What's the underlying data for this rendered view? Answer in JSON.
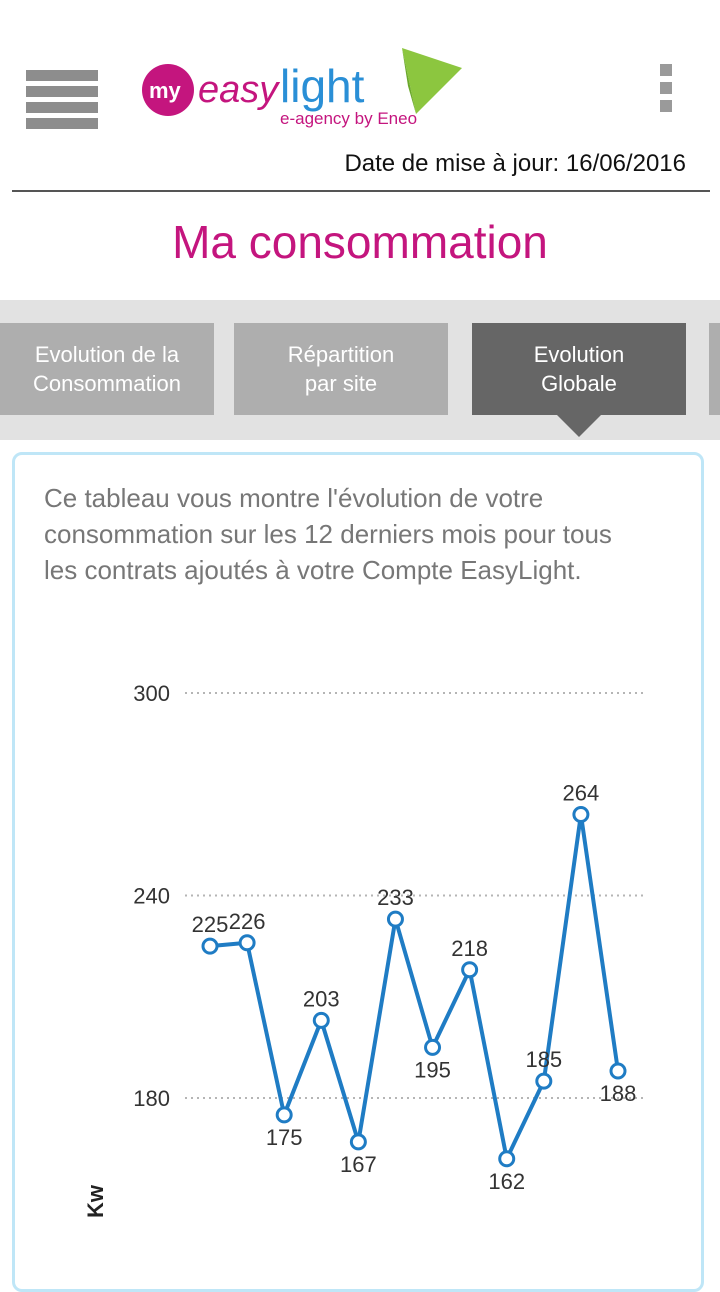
{
  "header": {
    "menu_icon": "hamburger-icon",
    "logo": {
      "my": "my",
      "easy": "easy",
      "light": "light",
      "tagline": "e-agency by Eneo"
    },
    "more_icon": "vertical-dots-icon",
    "update_label": "Date de mise à jour: 16/06/2016"
  },
  "page": {
    "title": "Ma consommation"
  },
  "tabs": [
    {
      "label": "Evolution de la\nConsommation",
      "active": false
    },
    {
      "label": "Répartition\npar site",
      "active": false
    },
    {
      "label": "Evolution\nGlobale",
      "active": true
    }
  ],
  "card": {
    "description": "Ce tableau vous montre l'évolution de votre consommation sur les 12 derniers mois pour tous les contrats ajoutés à votre Compte EasyLight."
  },
  "colors": {
    "accent": "#c4157e",
    "line": "#1f7cc4",
    "tab_active": "#666666",
    "tab_inactive": "#aeaeae",
    "card_border": "#bfe6f7"
  },
  "chart_data": {
    "type": "line",
    "ylabel": "Kw",
    "y_ticks": [
      180,
      240,
      300
    ],
    "ylim": [
      155,
      305
    ],
    "grid": "dotted horizontal",
    "series": [
      {
        "values": [
          225,
          226,
          175,
          203,
          167,
          233,
          195,
          218,
          162,
          185,
          264,
          188
        ]
      }
    ],
    "value_label_positions": [
      "above",
      "above",
      "below",
      "above",
      "below",
      "above",
      "below",
      "above",
      "below",
      "above",
      "above",
      "below"
    ]
  }
}
